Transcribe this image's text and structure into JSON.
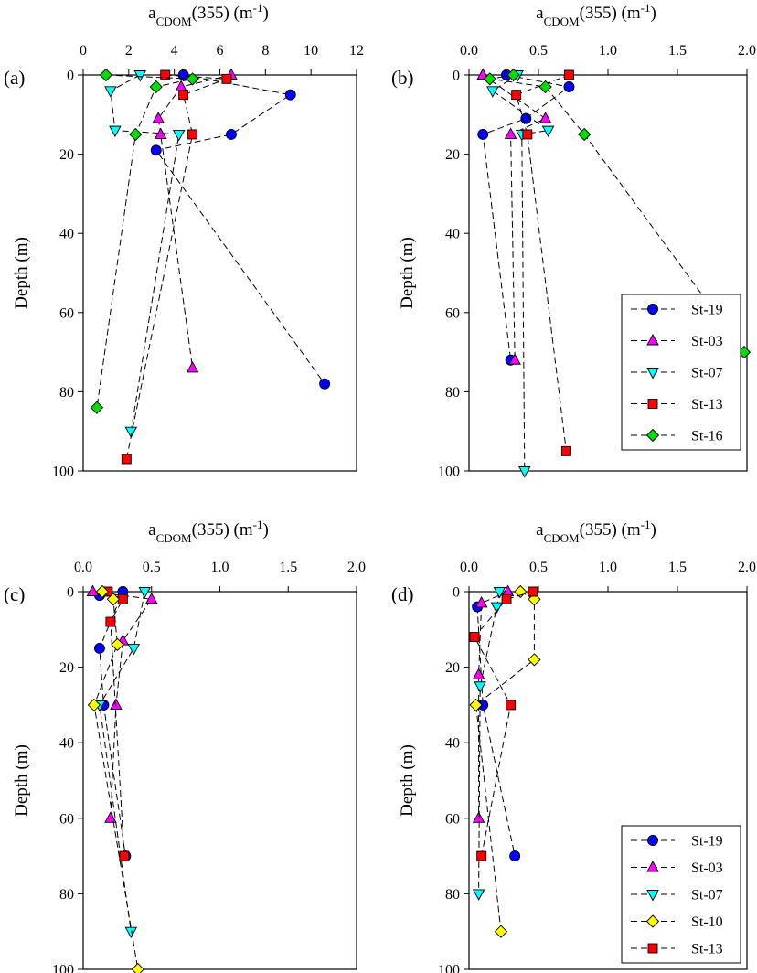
{
  "figure": {
    "axis_title_base": "a",
    "axis_title_sub": "CDOM",
    "axis_title_rest": "(355) (m",
    "axis_title_sup": "-1",
    "axis_title_close": ")",
    "colors": {
      "St-19": "#0000ff",
      "St-03": "#ff00ff",
      "St-07": "#00ffff",
      "St-13": "#ff0000",
      "St-16": "#00dd00",
      "St-10": "#ffff00"
    },
    "markers": {
      "St-19": "circle",
      "St-03": "triangle-up",
      "St-07": "triangle-down",
      "St-13": "square",
      "St-16": "diamond",
      "St-10": "diamond"
    }
  },
  "chart_data": [
    {
      "type": "line",
      "panel_label": "(a)",
      "xlabel": "aCDOM(355) (m-1)",
      "ylabel": "Depth (m)",
      "xlim": [
        0,
        12
      ],
      "ylim": [
        0,
        100
      ],
      "y_inverted": true,
      "xticks": [
        "0",
        "2",
        "4",
        "6",
        "8",
        "10",
        "12"
      ],
      "yticks": [
        "0",
        "20",
        "40",
        "60",
        "80",
        "100"
      ],
      "legend": false,
      "series": [
        {
          "name": "St-19",
          "points": [
            [
              4.4,
              0
            ],
            [
              9.1,
              5
            ],
            [
              6.5,
              15
            ],
            [
              3.2,
              19
            ],
            [
              10.6,
              78
            ]
          ]
        },
        {
          "name": "St-03",
          "points": [
            [
              6.5,
              0
            ],
            [
              4.3,
              3
            ],
            [
              3.3,
              11
            ],
            [
              3.4,
              15
            ],
            [
              4.8,
              74
            ]
          ]
        },
        {
          "name": "St-07",
          "points": [
            [
              2.5,
              0
            ],
            [
              1.2,
              4
            ],
            [
              1.4,
              14
            ],
            [
              4.2,
              15
            ],
            [
              2.1,
              90
            ]
          ]
        },
        {
          "name": "St-13",
          "points": [
            [
              3.6,
              0
            ],
            [
              6.3,
              1
            ],
            [
              4.4,
              5
            ],
            [
              4.8,
              15
            ],
            [
              1.9,
              97
            ]
          ]
        },
        {
          "name": "St-16",
          "points": [
            [
              1.0,
              0
            ],
            [
              4.8,
              1
            ],
            [
              3.2,
              3
            ],
            [
              2.3,
              15
            ],
            [
              0.6,
              84
            ]
          ]
        }
      ]
    },
    {
      "type": "line",
      "panel_label": "(b)",
      "xlabel": "aCDOM(355) (m-1)",
      "ylabel": "Depth (m)",
      "xlim": [
        0,
        2
      ],
      "ylim": [
        0,
        100
      ],
      "y_inverted": true,
      "xticks": [
        "0.0",
        "0.5",
        "1.0",
        "1.5",
        "2.0"
      ],
      "yticks": [
        "0",
        "20",
        "40",
        "60",
        "80",
        "100"
      ],
      "legend": true,
      "legend_entries": [
        "St-19",
        "St-03",
        "St-07",
        "St-13",
        "St-16"
      ],
      "series": [
        {
          "name": "St-19",
          "points": [
            [
              0.27,
              0
            ],
            [
              0.72,
              3
            ],
            [
              0.41,
              11
            ],
            [
              0.1,
              15
            ],
            [
              0.3,
              72
            ]
          ]
        },
        {
          "name": "St-03",
          "points": [
            [
              0.1,
              0
            ],
            [
              0.55,
              11
            ],
            [
              0.3,
              15
            ],
            [
              0.33,
              72
            ]
          ]
        },
        {
          "name": "St-07",
          "points": [
            [
              0.35,
              0
            ],
            [
              0.17,
              4
            ],
            [
              0.57,
              14
            ],
            [
              0.38,
              15
            ],
            [
              0.4,
              100
            ]
          ]
        },
        {
          "name": "St-13",
          "points": [
            [
              0.72,
              0
            ],
            [
              0.34,
              5
            ],
            [
              0.42,
              15
            ],
            [
              0.7,
              95
            ]
          ]
        },
        {
          "name": "St-16",
          "points": [
            [
              0.32,
              0
            ],
            [
              0.15,
              1
            ],
            [
              0.55,
              3
            ],
            [
              0.83,
              15
            ],
            [
              1.98,
              70
            ]
          ]
        }
      ]
    },
    {
      "type": "line",
      "panel_label": "(c)",
      "xlabel": "aCDOM(355) (m-1)",
      "ylabel": "Depth (m)",
      "xlim": [
        0,
        2
      ],
      "ylim": [
        0,
        100
      ],
      "y_inverted": true,
      "xticks": [
        "0.0",
        "0.5",
        "1.0",
        "1.5",
        "2.0"
      ],
      "yticks": [
        "0",
        "20",
        "40",
        "60",
        "80",
        "100"
      ],
      "legend": false,
      "series": [
        {
          "name": "St-19",
          "points": [
            [
              0.12,
              1
            ],
            [
              0.29,
              0
            ],
            [
              0.12,
              15
            ],
            [
              0.15,
              30
            ],
            [
              0.31,
              70
            ]
          ]
        },
        {
          "name": "St-03",
          "points": [
            [
              0.07,
              0
            ],
            [
              0.5,
              2
            ],
            [
              0.29,
              13
            ],
            [
              0.24,
              30
            ],
            [
              0.2,
              60
            ]
          ]
        },
        {
          "name": "St-07",
          "points": [
            [
              0.45,
              0
            ],
            [
              0.37,
              15
            ],
            [
              0.12,
              30
            ],
            [
              0.35,
              90
            ]
          ]
        },
        {
          "name": "St-13",
          "points": [
            [
              0.18,
              0
            ],
            [
              0.29,
              2
            ],
            [
              0.2,
              8
            ],
            [
              0.3,
              70
            ]
          ]
        },
        {
          "name": "St-10",
          "points": [
            [
              0.14,
              0
            ],
            [
              0.22,
              2
            ],
            [
              0.25,
              14
            ],
            [
              0.08,
              30
            ],
            [
              0.4,
              100
            ]
          ]
        }
      ]
    },
    {
      "type": "line",
      "panel_label": "(d)",
      "xlabel": "aCDOM(355) (m-1)",
      "ylabel": "Depth (m)",
      "xlim": [
        0,
        2
      ],
      "ylim": [
        0,
        100
      ],
      "y_inverted": true,
      "xticks": [
        "0.0",
        "0.5",
        "1.0",
        "1.5",
        "2.0"
      ],
      "yticks": [
        "0",
        "20",
        "40",
        "60",
        "80",
        "100"
      ],
      "legend": true,
      "legend_entries": [
        "St-19",
        "St-03",
        "St-07",
        "St-10",
        "St-13"
      ],
      "series": [
        {
          "name": "St-19",
          "points": [
            [
              0.06,
              4
            ],
            [
              0.1,
              30
            ],
            [
              0.33,
              70
            ]
          ]
        },
        {
          "name": "St-03",
          "points": [
            [
              0.28,
              0
            ],
            [
              0.09,
              3
            ],
            [
              0.07,
              22
            ],
            [
              0.07,
              60
            ]
          ]
        },
        {
          "name": "St-07",
          "points": [
            [
              0.22,
              0
            ],
            [
              0.2,
              4
            ],
            [
              0.08,
              25
            ],
            [
              0.07,
              80
            ]
          ]
        },
        {
          "name": "St-10",
          "points": [
            [
              0.37,
              0
            ],
            [
              0.47,
              2
            ],
            [
              0.47,
              18
            ],
            [
              0.05,
              30
            ],
            [
              0.23,
              90
            ]
          ]
        },
        {
          "name": "St-13",
          "points": [
            [
              0.46,
              0
            ],
            [
              0.27,
              2
            ],
            [
              0.04,
              12
            ],
            [
              0.3,
              30
            ],
            [
              0.09,
              70
            ]
          ]
        }
      ]
    }
  ]
}
